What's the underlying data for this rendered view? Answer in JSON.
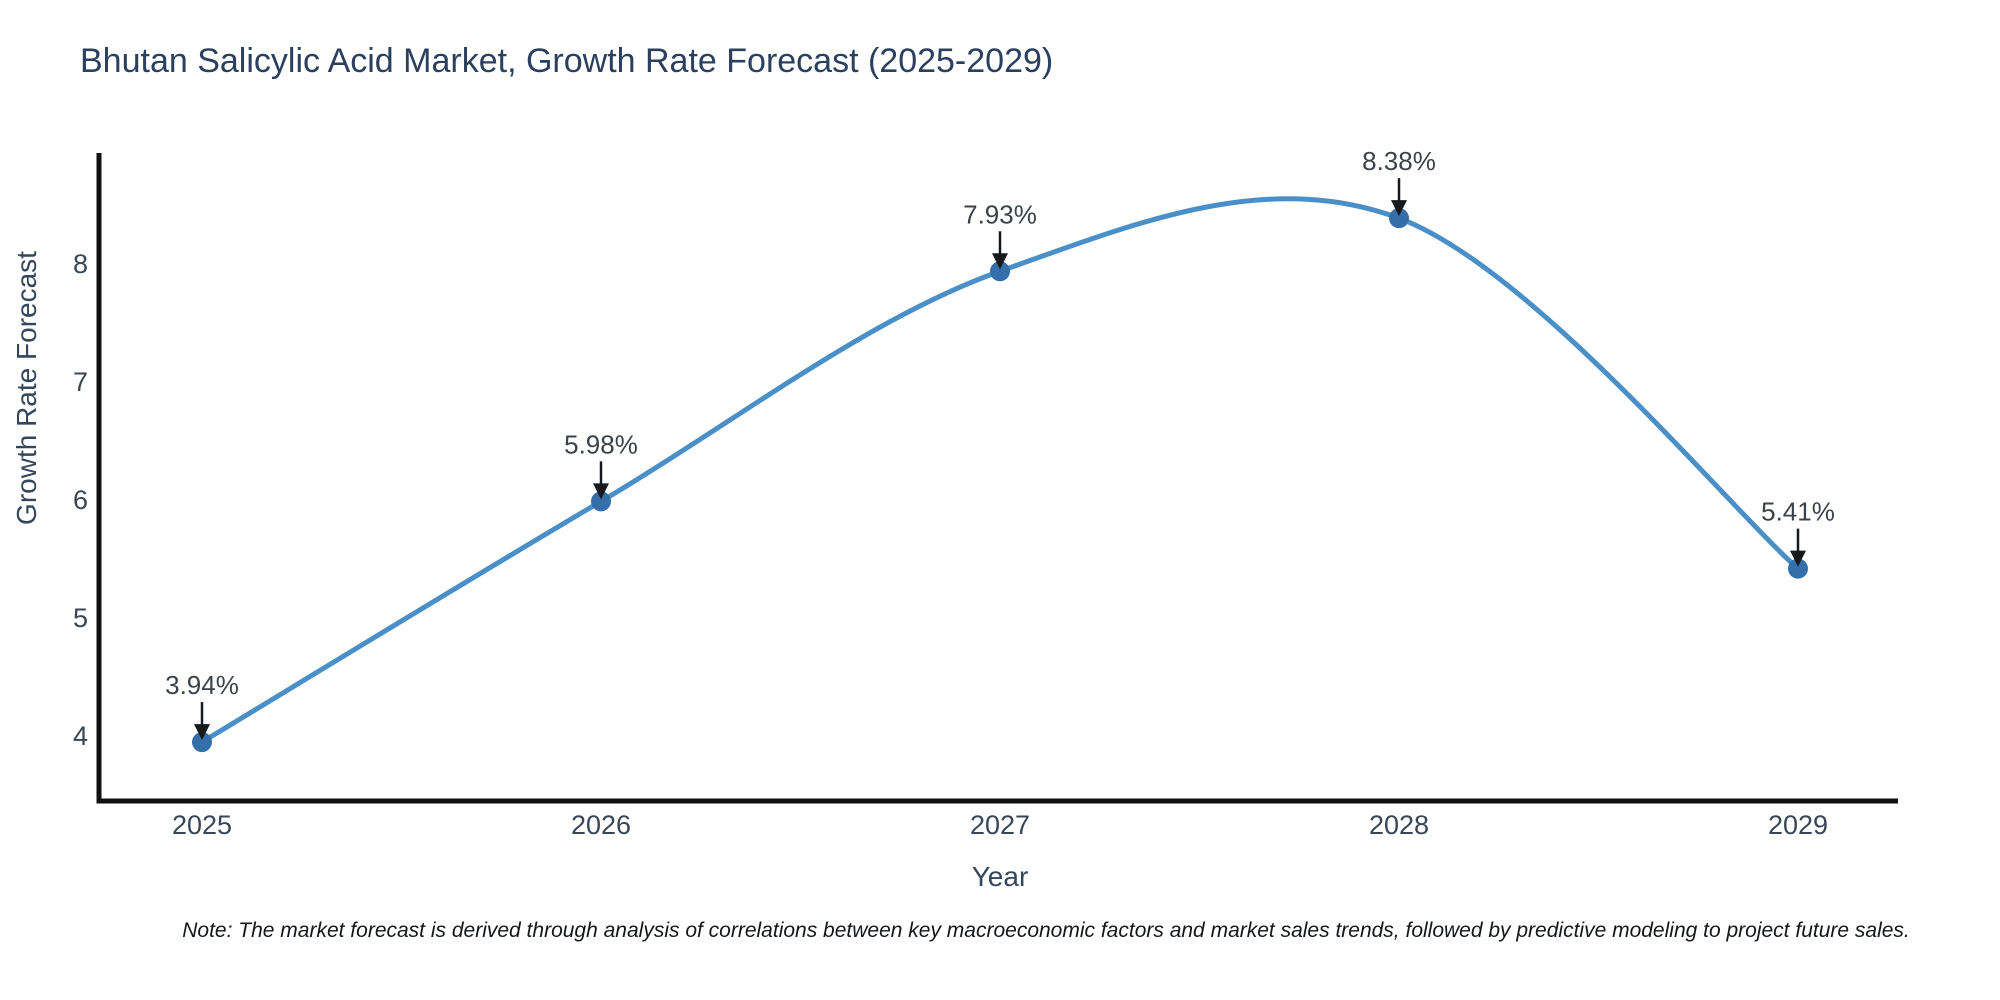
{
  "title": "Bhutan Salicylic Acid Market, Growth Rate Forecast (2025-2029)",
  "note": "Note: The market forecast is derived through analysis of correlations between key macroeconomic factors and market sales trends, followed by predictive modeling to project future sales.",
  "colors": {
    "line": "#4a8fc7",
    "marker": "#356fa9",
    "axis": "#111111",
    "title_text": "#2b3f5e",
    "tick_text": "#384656",
    "annotation_text": "#3c424a",
    "arrow": "#17191c"
  },
  "chart_data": {
    "type": "line",
    "title": "Bhutan Salicylic Acid Market, Growth Rate Forecast (2025-2029)",
    "xlabel": "Year",
    "ylabel": "Growth Rate Forecast",
    "x": [
      2025,
      2026,
      2027,
      2028,
      2029
    ],
    "values": [
      3.94,
      5.98,
      7.93,
      8.38,
      5.41
    ],
    "point_labels": [
      "3.94%",
      "5.98%",
      "7.93%",
      "8.38%",
      "5.41%"
    ],
    "series_name": "Growth Rate Forecast",
    "yticks": [
      4,
      5,
      6,
      7,
      8
    ],
    "ylim": [
      3.45,
      8.93
    ],
    "xlim": [
      2024.74,
      2029.25
    ],
    "line_shape": "spline",
    "markers": true,
    "grid": false,
    "legend": false,
    "annotations_have_arrows": true
  }
}
